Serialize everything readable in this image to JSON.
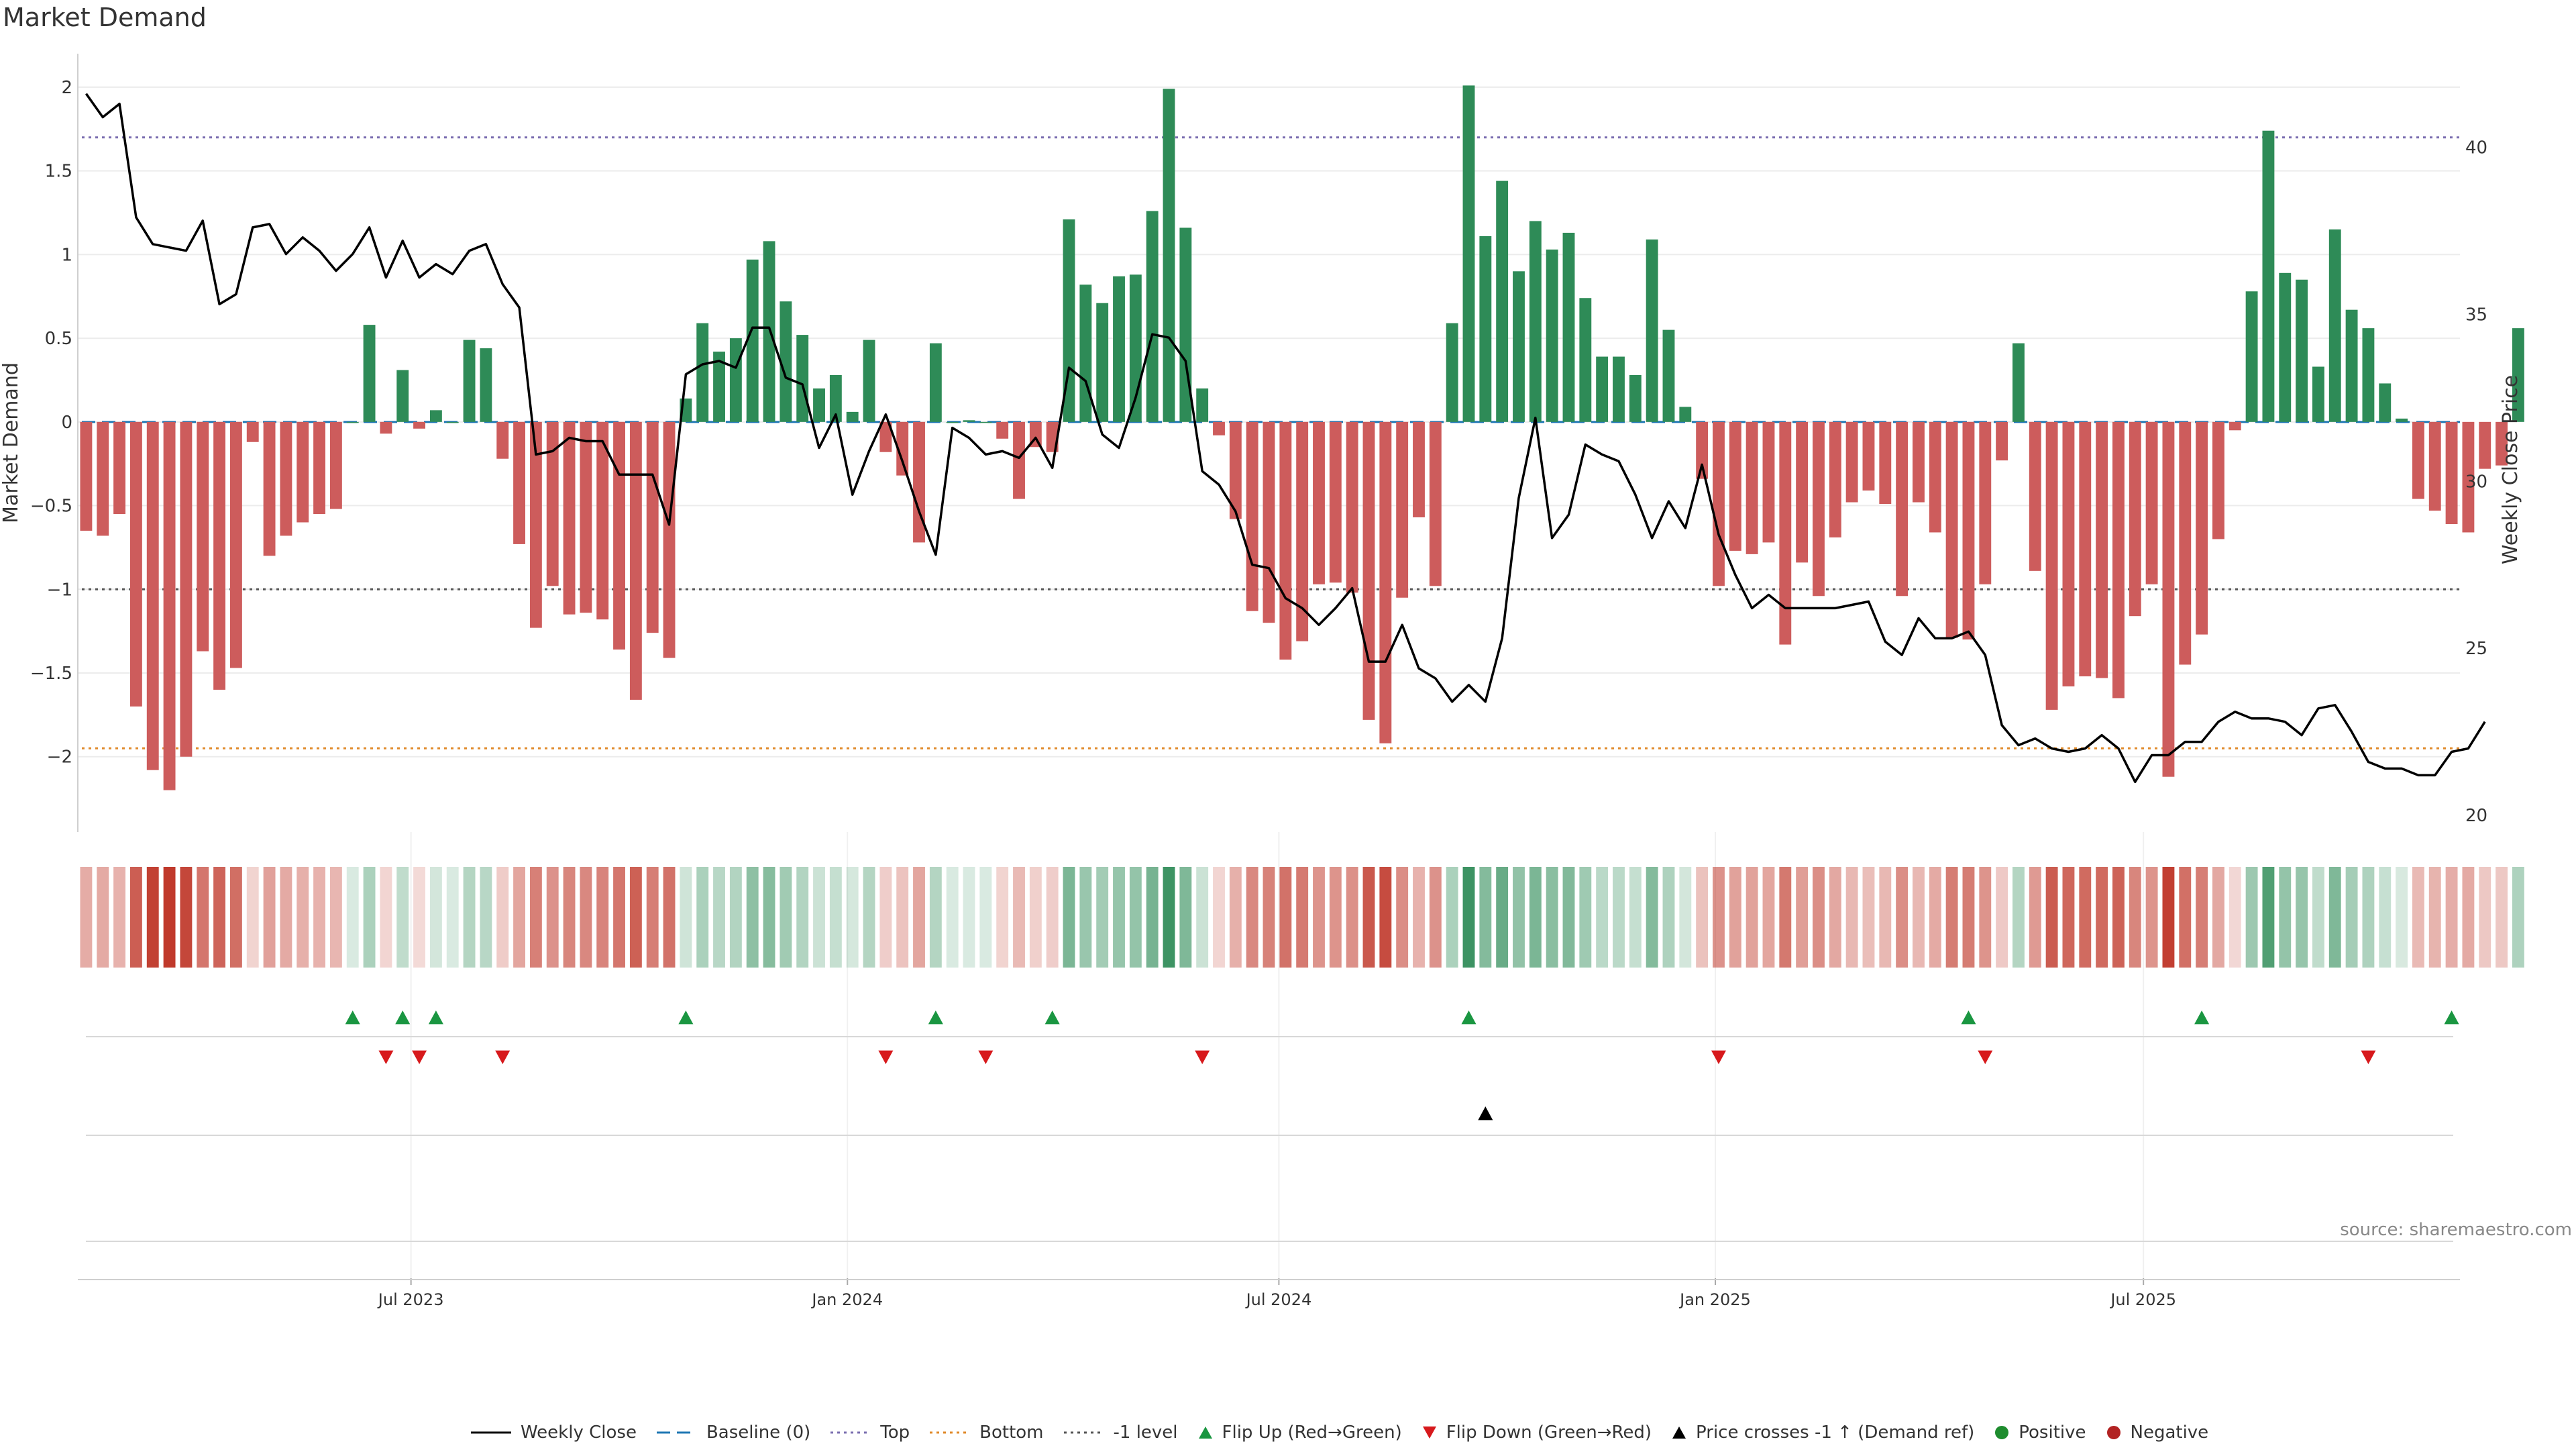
{
  "title": "Market Demand",
  "source_note": "source: sharemaestro.com",
  "colors": {
    "positive": "#2e8b57",
    "negative": "#cd5c5c",
    "flip_up": "#1a9641",
    "flip_down": "#d7191c",
    "price_line": "#000000",
    "top_line": "#7b6fb0",
    "bottom_line": "#e08a2a",
    "minus_one_line": "#555555",
    "baseline": "#1f77b4",
    "heat_positive": "#2e8b57",
    "heat_negative": "#c0392b"
  },
  "chart_data": {
    "type": "bar",
    "title": "Market Demand",
    "ylabel": "Market Demand",
    "y2label": "Weekly Close Price",
    "ylim": [
      -2.45,
      2.2
    ],
    "y2lim": [
      19.5,
      42.8
    ],
    "yticks": [
      2,
      1.5,
      1,
      0.5,
      0,
      -0.5,
      -1,
      -1.5,
      -2
    ],
    "ytick_labels": [
      "2",
      "1.5",
      "1",
      "0.5",
      "0",
      "−0.5",
      "−1",
      "−1.5",
      "−2"
    ],
    "y2ticks": [
      40,
      35,
      30,
      25,
      20
    ],
    "y2tick_labels": [
      "40",
      "35",
      "30",
      "25",
      "20"
    ],
    "x_range_index": [
      -0.5,
      142.5
    ],
    "xticks": [
      {
        "index": 19.5,
        "label": "Jul 2023"
      },
      {
        "index": 45.7,
        "label": "Jan 2024"
      },
      {
        "index": 71.6,
        "label": "Jul 2024"
      },
      {
        "index": 97.8,
        "label": "Jan 2025"
      },
      {
        "index": 123.5,
        "label": "Jul 2025"
      }
    ],
    "reference_lines": [
      {
        "name": "Top",
        "value": 1.7
      },
      {
        "name": "Bottom",
        "value": -1.95
      },
      {
        "name": "-1 level",
        "value": -1.0
      },
      {
        "name": "Baseline (0)",
        "value": 0
      }
    ],
    "demand": [
      -0.65,
      -0.68,
      -0.55,
      -1.7,
      -2.08,
      -2.2,
      -2.0,
      -1.37,
      -1.6,
      -1.47,
      -0.12,
      -0.8,
      -0.68,
      -0.6,
      -0.55,
      -0.52,
      0.0,
      0.58,
      -0.07,
      0.31,
      -0.04,
      0.07,
      0.0,
      0.49,
      0.44,
      -0.22,
      -0.73,
      -1.23,
      -0.98,
      -1.15,
      -1.14,
      -1.18,
      -1.36,
      -1.66,
      -1.26,
      -1.41,
      0.14,
      0.59,
      0.42,
      0.5,
      0.97,
      1.08,
      0.72,
      0.52,
      0.2,
      0.28,
      0.06,
      0.49,
      -0.18,
      -0.32,
      -0.72,
      0.47,
      0.0,
      0.01,
      0.0,
      -0.1,
      -0.46,
      -0.15,
      -0.18,
      1.21,
      0.82,
      0.71,
      0.87,
      0.88,
      1.26,
      1.99,
      1.16,
      0.2,
      -0.08,
      -0.58,
      -1.13,
      -1.2,
      -1.42,
      -1.31,
      -0.97,
      -0.96,
      -1.02,
      -1.78,
      -1.92,
      -1.05,
      -0.57,
      -0.98,
      0.59,
      2.01,
      1.11,
      1.44,
      0.9,
      1.2,
      1.03,
      1.13,
      0.74,
      0.39,
      0.39,
      0.28,
      1.09,
      0.55,
      0.09,
      -0.34,
      -0.98,
      -0.77,
      -0.79,
      -0.72,
      -1.33,
      -0.84,
      -1.04,
      -0.69,
      -0.48,
      -0.41,
      -0.49,
      -1.04,
      -0.48,
      -0.66,
      -1.29,
      -1.3,
      -0.97,
      -0.23,
      0.47,
      -0.89,
      -1.72,
      -1.58,
      -1.52,
      -1.53,
      -1.65,
      -1.16,
      -0.97,
      -2.12,
      -1.45,
      -1.27,
      -0.7,
      -0.05,
      0.78,
      1.74,
      0.89,
      0.85,
      0.33,
      1.15,
      0.67,
      0.56,
      0.23,
      0.02,
      -0.46,
      -0.53,
      -0.61,
      -0.66,
      -0.28,
      -0.26,
      0.56
    ],
    "weekly_close": [
      41.6,
      40.9,
      41.3,
      37.9,
      37.1,
      37.0,
      36.9,
      37.8,
      35.3,
      35.6,
      37.6,
      37.7,
      36.8,
      37.3,
      36.9,
      36.3,
      36.8,
      37.6,
      36.1,
      37.2,
      36.1,
      36.5,
      36.2,
      36.9,
      37.1,
      35.9,
      35.2,
      30.8,
      30.9,
      31.3,
      31.2,
      31.2,
      30.2,
      30.2,
      30.2,
      28.7,
      33.2,
      33.5,
      33.6,
      33.4,
      34.6,
      34.6,
      33.1,
      32.9,
      31.0,
      32.0,
      29.6,
      30.9,
      32.0,
      30.6,
      29.1,
      27.8,
      31.6,
      31.3,
      30.8,
      30.9,
      30.7,
      31.3,
      30.4,
      33.4,
      33.0,
      31.4,
      31.0,
      32.5,
      34.4,
      34.3,
      33.6,
      30.3,
      29.9,
      29.1,
      27.5,
      27.4,
      26.5,
      26.2,
      25.7,
      26.2,
      26.8,
      24.6,
      24.6,
      25.7,
      24.4,
      24.1,
      23.4,
      23.9,
      23.4,
      25.3,
      29.5,
      31.9,
      28.3,
      29.0,
      31.1,
      30.8,
      30.6,
      29.6,
      28.3,
      29.4,
      28.6,
      30.5,
      28.4,
      27.2,
      26.2,
      26.6,
      26.2,
      26.2,
      26.2,
      26.2,
      26.3,
      26.4,
      25.2,
      24.8,
      25.9,
      25.3,
      25.3,
      25.5,
      24.8,
      22.7,
      22.1,
      22.3,
      22.0,
      21.9,
      22.0,
      22.4,
      22.0,
      21.0,
      21.8,
      21.8,
      22.2,
      22.2,
      22.8,
      23.1,
      22.9,
      22.9,
      22.8,
      22.4,
      23.2,
      23.3,
      22.5,
      21.6,
      21.4,
      21.4,
      21.2,
      21.2,
      21.9,
      22.0,
      22.8
    ],
    "flip_up_index": [
      16,
      19,
      21,
      36,
      51,
      58,
      83,
      113,
      127,
      142
    ],
    "flip_down_index": [
      18,
      20,
      25,
      48,
      54,
      67,
      98,
      114,
      137
    ],
    "price_cross_index": [
      84
    ],
    "series": [
      {
        "name": "Market Demand",
        "kind": "bar"
      },
      {
        "name": "Weekly Close",
        "kind": "line",
        "axis": "right"
      }
    ]
  },
  "legend": [
    {
      "kind": "line",
      "color": "#000000",
      "dash": "",
      "label": "Weekly Close"
    },
    {
      "kind": "line",
      "color": "#1f77b4",
      "dash": "20 10",
      "label": "Baseline (0)"
    },
    {
      "kind": "line",
      "color": "#7b6fb0",
      "dash": "4 6",
      "label": "Top"
    },
    {
      "kind": "line",
      "color": "#e08a2a",
      "dash": "4 6",
      "label": "Bottom"
    },
    {
      "kind": "line",
      "color": "#555555",
      "dash": "4 6",
      "label": "-1 level"
    },
    {
      "kind": "tri-up",
      "color": "#1a9641",
      "label": "Flip Up (Red→Green)"
    },
    {
      "kind": "tri-down",
      "color": "#d7191c",
      "label": "Flip Down (Green→Red)"
    },
    {
      "kind": "tri-up",
      "color": "#000000",
      "label": "Price crosses -1 ↑ (Demand ref)"
    },
    {
      "kind": "dot",
      "color": "#1e8c2e",
      "label": "Positive"
    },
    {
      "kind": "dot",
      "color": "#b22222",
      "label": "Negative"
    }
  ]
}
